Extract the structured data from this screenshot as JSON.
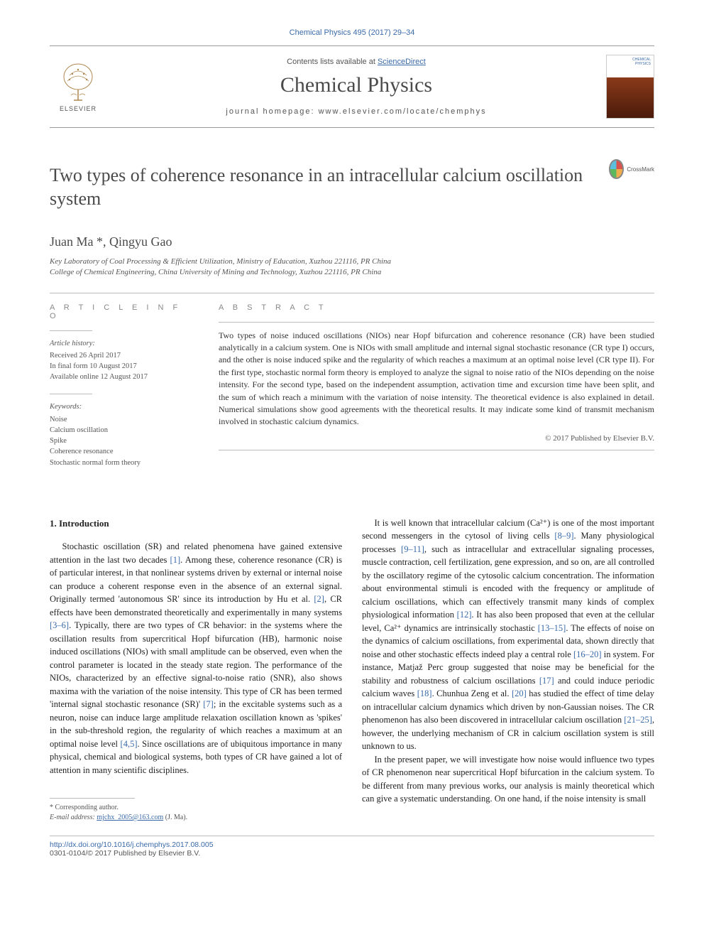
{
  "citation": "Chemical Physics 495 (2017) 29–34",
  "header": {
    "contents_prefix": "Contents lists available at ",
    "contents_link": "ScienceDirect",
    "journal": "Chemical Physics",
    "homepage_prefix": "journal homepage: ",
    "homepage": "www.elsevier.com/locate/chemphys",
    "publisher": "ELSEVIER"
  },
  "title": "Two types of coherence resonance in an intracellular calcium oscillation system",
  "crossmark": "CrossMark",
  "authors": "Juan Ma *, Qingyu Gao",
  "affiliations": [
    "Key Laboratory of Coal Processing & Efficient Utilization, Ministry of Education, Xuzhou 221116, PR China",
    "College of Chemical Engineering, China University of Mining and Technology, Xuzhou 221116, PR China"
  ],
  "article_info": {
    "heading": "A R T I C L E   I N F O",
    "history_label": "Article history:",
    "history": [
      "Received 26 April 2017",
      "In final form 10 August 2017",
      "Available online 12 August 2017"
    ],
    "keywords_label": "Keywords:",
    "keywords": [
      "Noise",
      "Calcium oscillation",
      "Spike",
      "Coherence resonance",
      "Stochastic normal form theory"
    ]
  },
  "abstract": {
    "heading": "A B S T R A C T",
    "text": "Two types of noise induced oscillations (NIOs) near Hopf bifurcation and coherence resonance (CR) have been studied analytically in a calcium system. One is NIOs with small amplitude and internal signal stochastic resonance (CR type I) occurs, and the other is noise induced spike and the regularity of which reaches a maximum at an optimal noise level (CR type II). For the first type, stochastic normal form theory is employed to analyze the signal to noise ratio of the NIOs depending on the noise intensity. For the second type, based on the independent assumption, activation time and excursion time have been split, and the sum of which reach a minimum with the variation of noise intensity. The theoretical evidence is also explained in detail. Numerical simulations show good agreements with the theoretical results. It may indicate some kind of transmit mechanism involved in stochastic calcium dynamics.",
    "copyright": "© 2017 Published by Elsevier B.V."
  },
  "body": {
    "intro_heading": "1. Introduction",
    "col1_p1": "Stochastic oscillation (SR) and related phenomena have gained extensive attention in the last two decades [1]. Among these, coherence resonance (CR) is of particular interest, in that nonlinear systems driven by external or internal noise can produce a coherent response even in the absence of an external signal. Originally termed 'autonomous SR' since its introduction by Hu et al. [2], CR effects have been demonstrated theoretically and experimentally in many systems [3–6]. Typically, there are two types of CR behavior: in the systems where the oscillation results from supercritical Hopf bifurcation (HB), harmonic noise induced oscillations (NIOs) with small amplitude can be observed, even when the control parameter is located in the steady state region. The performance of the NIOs, characterized by an effective signal-to-noise ratio (SNR), also shows maxima with the variation of the noise intensity. This type of CR has been termed 'internal signal stochastic resonance (SR)' [7]; in the excitable systems such as a neuron, noise can induce large amplitude relaxation oscillation known as 'spikes' in the sub-threshold region, the regularity of which reaches a maximum at an optimal noise level [4,5]. Since oscillations are of ubiquitous importance in many physical, chemical and biological systems, both types of CR have gained a lot of attention in many scientific disciplines.",
    "col2_p1": "It is well known that intracellular calcium (Ca²⁺) is one of the most important second messengers in the cytosol of living cells [8–9]. Many physiological processes [9–11], such as intracellular and extracellular signaling processes, muscle contraction, cell fertilization, gene expression, and so on, are all controlled by the oscillatory regime of the cytosolic calcium concentration. The information about environmental stimuli is encoded with the frequency or amplitude of calcium oscillations, which can effectively transmit many kinds of complex physiological information [12]. It has also been proposed that even at the cellular level, Ca²⁺ dynamics are intrinsically stochastic [13–15]. The effects of noise on the dynamics of calcium oscillations, from experimental data, shown directly that noise and other stochastic effects indeed play a central role [16–20] in system. For instance, Matjaž Perc group suggested that noise may be beneficial for the stability and robustness of calcium oscillations [17] and could induce periodic calcium waves [18]. Chunhua Zeng et al. [20] has studied the effect of time delay on intracellular calcium dynamics which driven by non-Gaussian noises. The CR phenomenon has also been discovered in intracellular calcium oscillation [21–25], however, the underlying mechanism of CR in calcium oscillation system is still unknown to us.",
    "col2_p2": "In the present paper, we will investigate how noise would influence two types of CR phenomenon near supercritical Hopf bifurcation in the calcium system. To be different from many previous works, our analysis is mainly theoretical which can give a systematic understanding. On one hand, if the noise intensity is small"
  },
  "footnote": {
    "corresponding": "* Corresponding author.",
    "email_label": "E-mail address: ",
    "email": "mjchx_2005@163.com",
    "email_suffix": " (J. Ma)."
  },
  "footer": {
    "doi": "http://dx.doi.org/10.1016/j.chemphys.2017.08.005",
    "issn": "0301-0104/© 2017 Published by Elsevier B.V."
  },
  "colors": {
    "link": "#3a6aa8",
    "text": "#333333",
    "muted": "#555555",
    "rule": "#bbbbbb"
  }
}
